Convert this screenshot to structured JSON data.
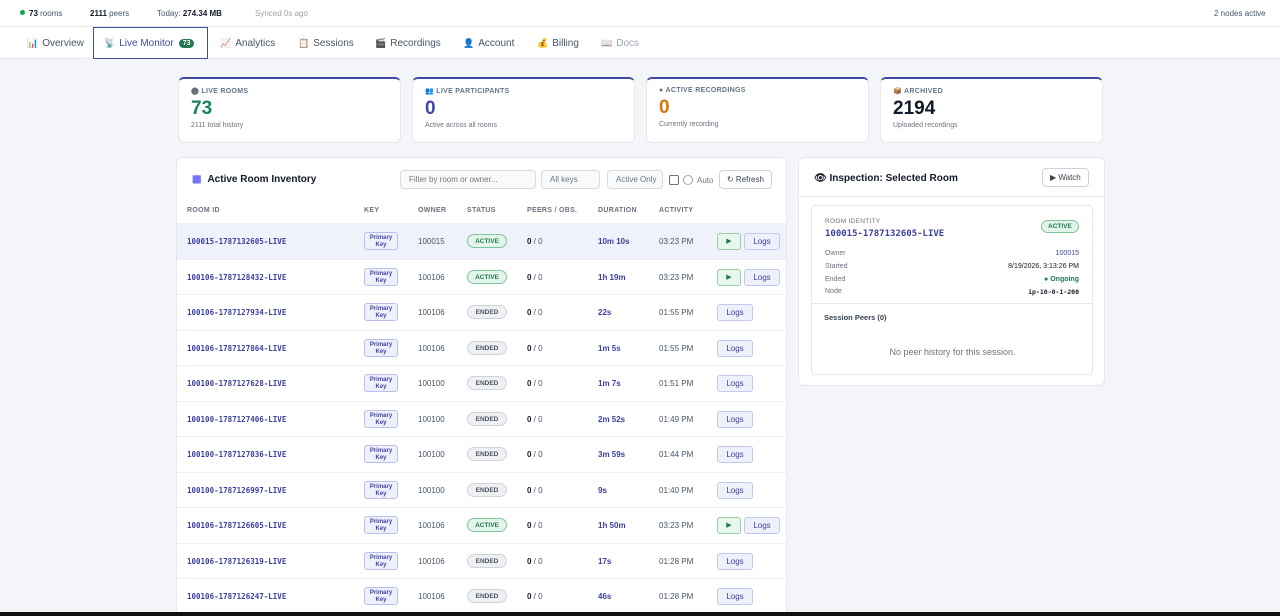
{
  "topbar": {
    "rooms_count": "73",
    "rooms_label": "rooms",
    "peers_count": "2111",
    "peers_label": "peers",
    "today_label": "Today:",
    "today_value": "274.34 MB",
    "synced": "Synced 0s ago",
    "nodes_active": "2 nodes active"
  },
  "nav": {
    "tabs": [
      {
        "icon": "📊",
        "label": "Overview"
      },
      {
        "icon": "📡",
        "label": "Live Monitor",
        "badge": "73"
      },
      {
        "icon": "📈",
        "label": "Analytics"
      },
      {
        "icon": "📋",
        "label": "Sessions"
      },
      {
        "icon": "🎬",
        "label": "Recordings"
      },
      {
        "icon": "👤",
        "label": "Account"
      },
      {
        "icon": "💰",
        "label": "Billing"
      },
      {
        "icon": "📖",
        "label": "Docs"
      }
    ],
    "active_tab": "Live Monitor"
  },
  "stats": [
    {
      "icon": "⬤",
      "label": "LIVE ROOMS",
      "value": "73",
      "sub": "2111 total history",
      "color": "#16845a"
    },
    {
      "icon": "👥",
      "label": "LIVE PARTICIPANTS",
      "value": "0",
      "sub": "Active across all rooms",
      "color": "#3f4aa6"
    },
    {
      "icon": "●",
      "label": "ACTIVE RECORDINGS",
      "value": "0",
      "sub": "Currently recording",
      "color": "#d97706"
    },
    {
      "icon": "📦",
      "label": "ARCHIVED",
      "value": "2194",
      "sub": "Uploaded recordings",
      "color": "#111827"
    }
  ],
  "inventory": {
    "title": "Active Room Inventory",
    "filter_placeholder": "Filter by room or owner...",
    "keys_select": "All keys",
    "active_only_label": "Active Only",
    "auto_label": "Auto",
    "refresh_label": "↻ Refresh",
    "columns": [
      "ROOM ID",
      "KEY",
      "OWNER",
      "STATUS",
      "PEERS / OBS.",
      "DURATION",
      "ACTIVITY"
    ],
    "key_label_line1": "Primary",
    "key_label_line2": "Key",
    "obs_text": " / 0",
    "play_label": "▶",
    "logs_label": "Logs",
    "rows": [
      {
        "room_id": "100015-1787132605-LIVE",
        "owner": "100015",
        "status": "ACTIVE",
        "peers": "0",
        "duration": "10m 10s",
        "activity": "03:23 PM",
        "live": true,
        "selected": true
      },
      {
        "room_id": "100106-1787128432-LIVE",
        "owner": "100106",
        "status": "ACTIVE",
        "peers": "0",
        "duration": "1h 19m",
        "activity": "03:23 PM",
        "live": true
      },
      {
        "room_id": "100106-1787127934-LIVE",
        "owner": "100106",
        "status": "ENDED",
        "peers": "0",
        "duration": "22s",
        "activity": "01:55 PM",
        "live": false
      },
      {
        "room_id": "100106-1787127864-LIVE",
        "owner": "100106",
        "status": "ENDED",
        "peers": "0",
        "duration": "1m 5s",
        "activity": "01:55 PM",
        "live": false
      },
      {
        "room_id": "100100-1787127628-LIVE",
        "owner": "100100",
        "status": "ENDED",
        "peers": "0",
        "duration": "1m 7s",
        "activity": "01:51 PM",
        "live": false
      },
      {
        "room_id": "100100-1787127406-LIVE",
        "owner": "100100",
        "status": "ENDED",
        "peers": "0",
        "duration": "2m 52s",
        "activity": "01:49 PM",
        "live": false
      },
      {
        "room_id": "100100-1787127036-LIVE",
        "owner": "100100",
        "status": "ENDED",
        "peers": "0",
        "duration": "3m 59s",
        "activity": "01:44 PM",
        "live": false
      },
      {
        "room_id": "100100-1787126997-LIVE",
        "owner": "100100",
        "status": "ENDED",
        "peers": "0",
        "duration": "9s",
        "activity": "01:40 PM",
        "live": false
      },
      {
        "room_id": "100106-1787126605-LIVE",
        "owner": "100106",
        "status": "ACTIVE",
        "peers": "0",
        "duration": "1h 50m",
        "activity": "03:23 PM",
        "live": true
      },
      {
        "room_id": "100106-1787126319-LIVE",
        "owner": "100106",
        "status": "ENDED",
        "peers": "0",
        "duration": "17s",
        "activity": "01:28 PM",
        "live": false
      },
      {
        "room_id": "100106-1787126247-LIVE",
        "owner": "100106",
        "status": "ENDED",
        "peers": "0",
        "duration": "46s",
        "activity": "01:28 PM",
        "live": false
      }
    ]
  },
  "inspection": {
    "title": "Inspection: Selected Room",
    "watch_label": "▶ Watch",
    "room_identity_label": "ROOM IDENTITY",
    "room_identity": "100015-1787132605-LIVE",
    "status": "ACTIVE",
    "fields": [
      {
        "key": "Owner",
        "value": "100015",
        "style": "link"
      },
      {
        "key": "Started",
        "value": "8/19/2026, 3:13:26 PM",
        "style": ""
      },
      {
        "key": "Ended",
        "value": "● Ongoing",
        "style": "ok"
      },
      {
        "key": "Node",
        "value": "ip-10-0-1-200",
        "style": "mono"
      }
    ],
    "peers_label": "Session Peers (0)",
    "empty_text": "No peer history for this session."
  },
  "colors": {
    "accent": "#3f4aa6",
    "success": "#1f7a4d",
    "warning": "#d97706"
  }
}
